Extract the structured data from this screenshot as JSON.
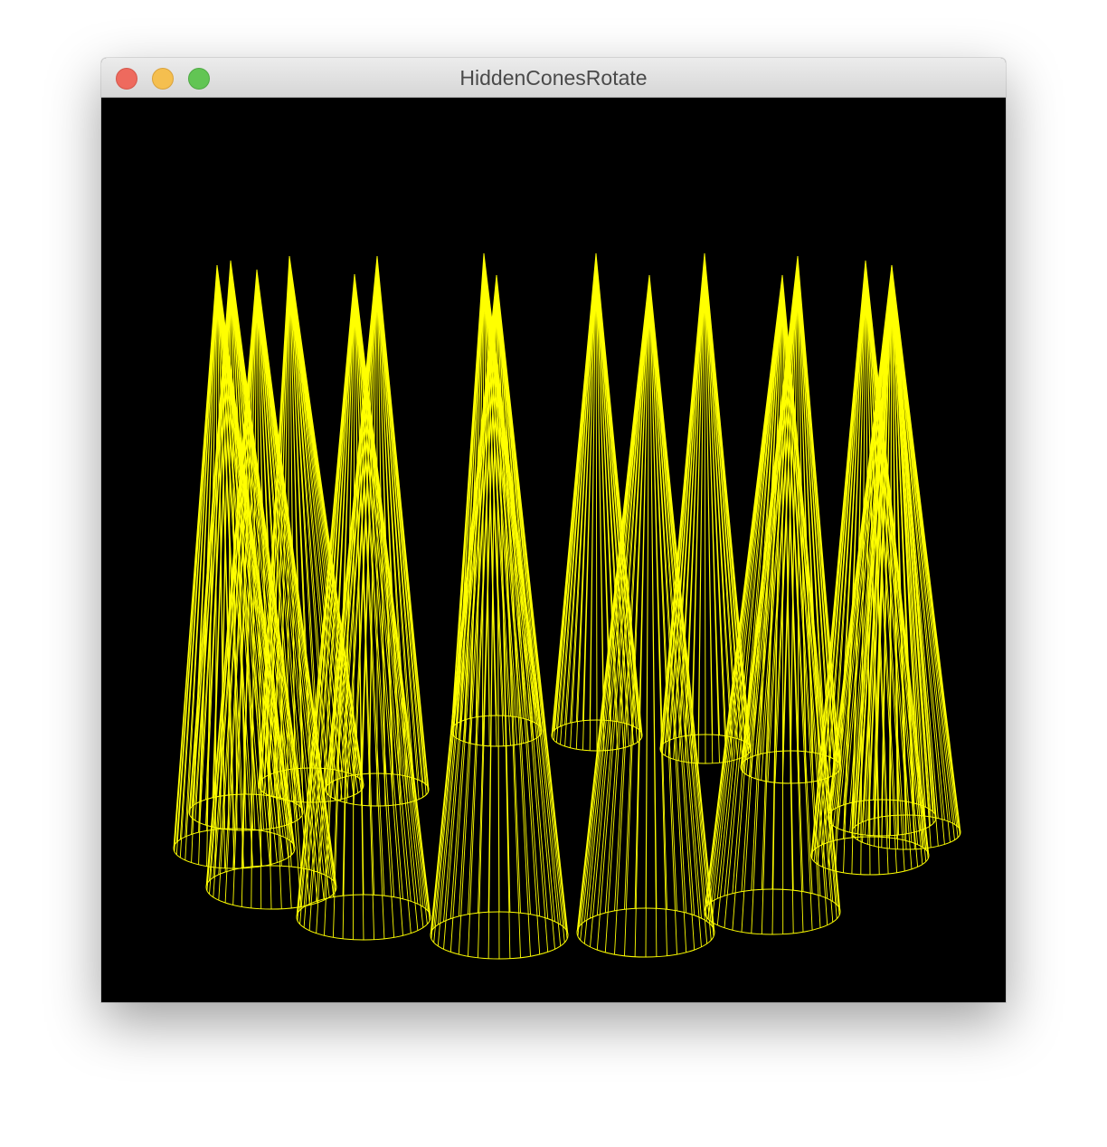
{
  "window": {
    "title": "HiddenConesRotate",
    "close_icon": "close-dot-icon",
    "minimize_icon": "minimize-dot-icon",
    "maximize_icon": "zoom-dot-icon"
  },
  "scene": {
    "background_color": "#000000",
    "line_color": "#ffff00",
    "object": "cone",
    "cone_count": 15,
    "render_style": "wireframe"
  }
}
